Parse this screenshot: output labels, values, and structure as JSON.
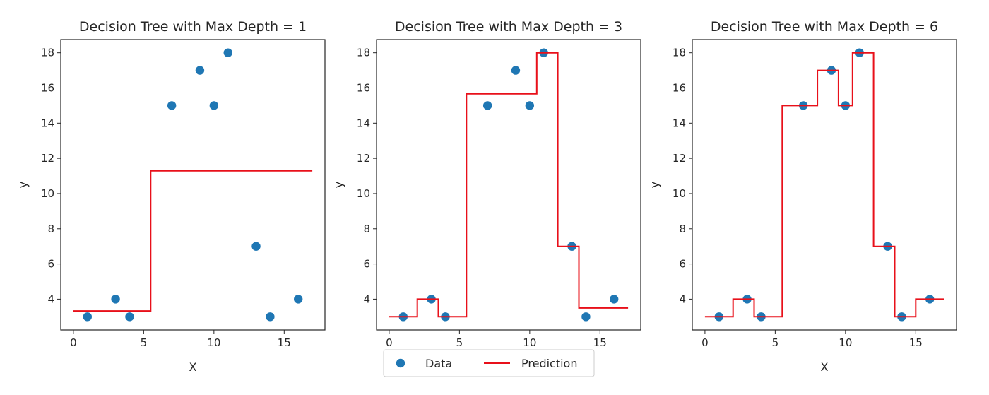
{
  "colors": {
    "data": "#1f77b4",
    "prediction": "#e8101a",
    "axes": "#262626"
  },
  "legend": {
    "items": [
      "Data",
      "Prediction"
    ],
    "placement": "bottom-center"
  },
  "chart_data": [
    {
      "type": "scatter+step",
      "title": "Decision Tree with Max Depth = 1",
      "xlabel": "X",
      "ylabel": "y",
      "xlim": [
        -0.9,
        17.9
      ],
      "ylim": [
        2.25,
        18.75
      ],
      "xticks": [
        0,
        5,
        10,
        15
      ],
      "yticks": [
        4,
        6,
        8,
        10,
        12,
        14,
        16,
        18
      ],
      "grid": false,
      "points": {
        "name": "Data",
        "x": [
          1,
          3,
          4,
          7,
          9,
          10,
          11,
          13,
          14,
          16
        ],
        "y": [
          3,
          4,
          3,
          15,
          17,
          15,
          18,
          7,
          3,
          4
        ]
      },
      "prediction": {
        "name": "Prediction",
        "x": [
          0,
          5.5,
          5.5,
          17
        ],
        "y": [
          3.33,
          3.33,
          11.29,
          11.29
        ]
      }
    },
    {
      "type": "scatter+step",
      "title": "Decision Tree with Max Depth = 3",
      "xlabel": "X",
      "ylabel": "y",
      "xlim": [
        -0.9,
        17.9
      ],
      "ylim": [
        2.25,
        18.75
      ],
      "xticks": [
        0,
        5,
        10,
        15
      ],
      "yticks": [
        4,
        6,
        8,
        10,
        12,
        14,
        16,
        18
      ],
      "grid": false,
      "points": {
        "name": "Data",
        "x": [
          1,
          3,
          4,
          7,
          9,
          10,
          11,
          13,
          14,
          16
        ],
        "y": [
          3,
          4,
          3,
          15,
          17,
          15,
          18,
          7,
          3,
          4
        ]
      },
      "prediction": {
        "name": "Prediction",
        "x": [
          0,
          2,
          2,
          3.5,
          3.5,
          5.5,
          5.5,
          10.5,
          10.5,
          12,
          12,
          13.5,
          13.5,
          17
        ],
        "y": [
          3,
          3,
          4,
          4,
          3,
          3,
          15.67,
          15.67,
          18,
          18,
          7,
          7,
          3.5,
          3.5
        ]
      }
    },
    {
      "type": "scatter+step",
      "title": "Decision Tree with Max Depth = 6",
      "xlabel": "X",
      "ylabel": "y",
      "xlim": [
        -0.9,
        17.9
      ],
      "ylim": [
        2.25,
        18.75
      ],
      "xticks": [
        0,
        5,
        10,
        15
      ],
      "yticks": [
        4,
        6,
        8,
        10,
        12,
        14,
        16,
        18
      ],
      "grid": false,
      "points": {
        "name": "Data",
        "x": [
          1,
          3,
          4,
          7,
          9,
          10,
          11,
          13,
          14,
          16
        ],
        "y": [
          3,
          4,
          3,
          15,
          17,
          15,
          18,
          7,
          3,
          4
        ]
      },
      "prediction": {
        "name": "Prediction",
        "x": [
          0,
          2,
          2,
          3.5,
          3.5,
          5.5,
          5.5,
          8,
          8,
          9.5,
          9.5,
          10.5,
          10.5,
          12,
          12,
          13.5,
          13.5,
          15,
          15,
          17
        ],
        "y": [
          3,
          3,
          4,
          4,
          3,
          3,
          15,
          15,
          17,
          17,
          15,
          15,
          18,
          18,
          7,
          7,
          3,
          3,
          4,
          4
        ]
      }
    }
  ]
}
